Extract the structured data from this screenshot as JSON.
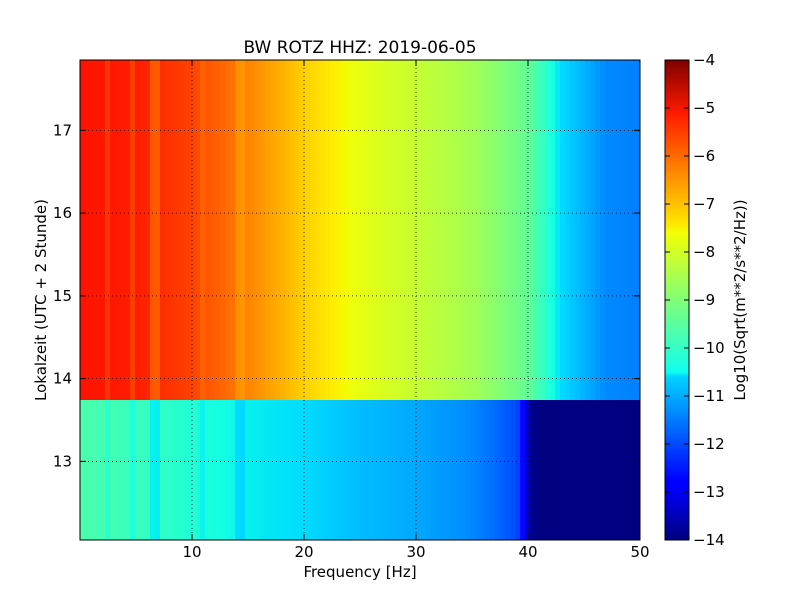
{
  "chart_data": {
    "type": "heatmap",
    "title": "BW ROTZ HHZ: 2019-06-05",
    "xlabel": "Frequency [Hz]",
    "ylabel": "Lokalzeit (UTC + 2 Stunde)",
    "xlim": [
      0,
      50
    ],
    "ylim": [
      17.85,
      12.05
    ],
    "y_inverted": true,
    "xticks": [
      10,
      20,
      30,
      40,
      50
    ],
    "yticks": [
      13,
      14,
      15,
      16,
      17
    ],
    "grid": true,
    "grid_style": "dotted",
    "colormap": "jet",
    "colorbar": {
      "label": "Log10(Sqrt(m**2/s**2/Hz))",
      "range": [
        -14,
        -4
      ],
      "ticks": [
        -14,
        -13,
        -12,
        -11,
        -10,
        -9,
        -8,
        -7,
        -6,
        -5,
        -4
      ]
    },
    "regions": [
      {
        "time_range": [
          12.05,
          13.72
        ],
        "profile_freq": [
          0,
          5,
          10,
          15,
          20,
          25,
          30,
          35,
          39,
          40.5,
          50
        ],
        "profile_value": [
          -9.6,
          -9.8,
          -10.1,
          -10.4,
          -10.6,
          -10.9,
          -11.1,
          -11.4,
          -12.0,
          -14.0,
          -14.0
        ]
      },
      {
        "time_range": [
          13.72,
          17.85
        ],
        "profile_freq": [
          0,
          5,
          10,
          15,
          20,
          25,
          30,
          35,
          40,
          43,
          47,
          50
        ],
        "profile_value": [
          -5.1,
          -5.2,
          -5.6,
          -6.3,
          -7.1,
          -7.7,
          -8.1,
          -8.5,
          -9.3,
          -10.6,
          -11.4,
          -11.5
        ]
      }
    ],
    "horizontal_features": [
      {
        "time": 14.68,
        "delta": -0.5
      },
      {
        "time": 17.67,
        "delta": -0.6
      }
    ],
    "vertical_features": [
      {
        "freq": 2.5,
        "delta": -0.3
      },
      {
        "freq": 4.8,
        "delta": -0.35
      },
      {
        "freq": 6.7,
        "delta": -0.5
      },
      {
        "freq": 11.0,
        "delta": -0.2
      },
      {
        "freq": 14.3,
        "delta": -0.25
      }
    ]
  }
}
